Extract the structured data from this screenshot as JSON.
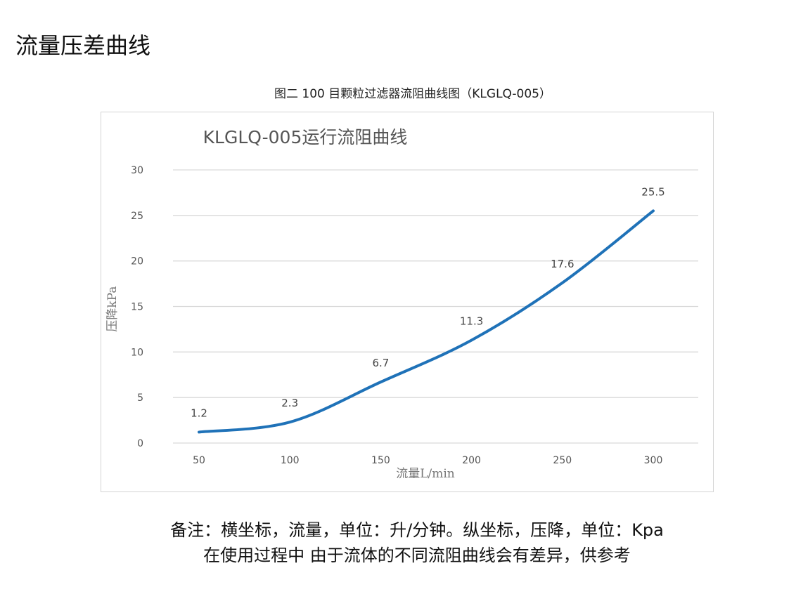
{
  "heading": "流量压差曲线",
  "caption": "图二 100 目颗粒过滤器流阻曲线图（KLGLQ-005）",
  "notes": [
    "备注：横坐标，流量，单位：升/分钟。纵坐标，压降，单位：Kpa",
    "在使用过程中 由于流体的不同流阻曲线会有差异，供参考"
  ],
  "chart_data": {
    "type": "line",
    "title": "KLGLQ-005运行流阻曲线",
    "xlabel": "流量L/min",
    "ylabel": "压降kPa",
    "x": [
      50,
      100,
      150,
      200,
      250,
      300
    ],
    "x_tick_labels": [
      "50",
      "100",
      "150",
      "200",
      "250",
      "300"
    ],
    "y_tick_labels": [
      "0",
      "5",
      "10",
      "15",
      "20",
      "25",
      "30"
    ],
    "ylim": [
      0,
      30
    ],
    "grid": true,
    "series": [
      {
        "values": [
          1.2,
          2.3,
          6.7,
          11.3,
          17.6,
          25.5
        ],
        "data_labels": [
          "1.2",
          "2.3",
          "6.7",
          "11.3",
          "17.6",
          "25.5"
        ],
        "color": "#1f72b8",
        "smooth": true
      }
    ]
  }
}
